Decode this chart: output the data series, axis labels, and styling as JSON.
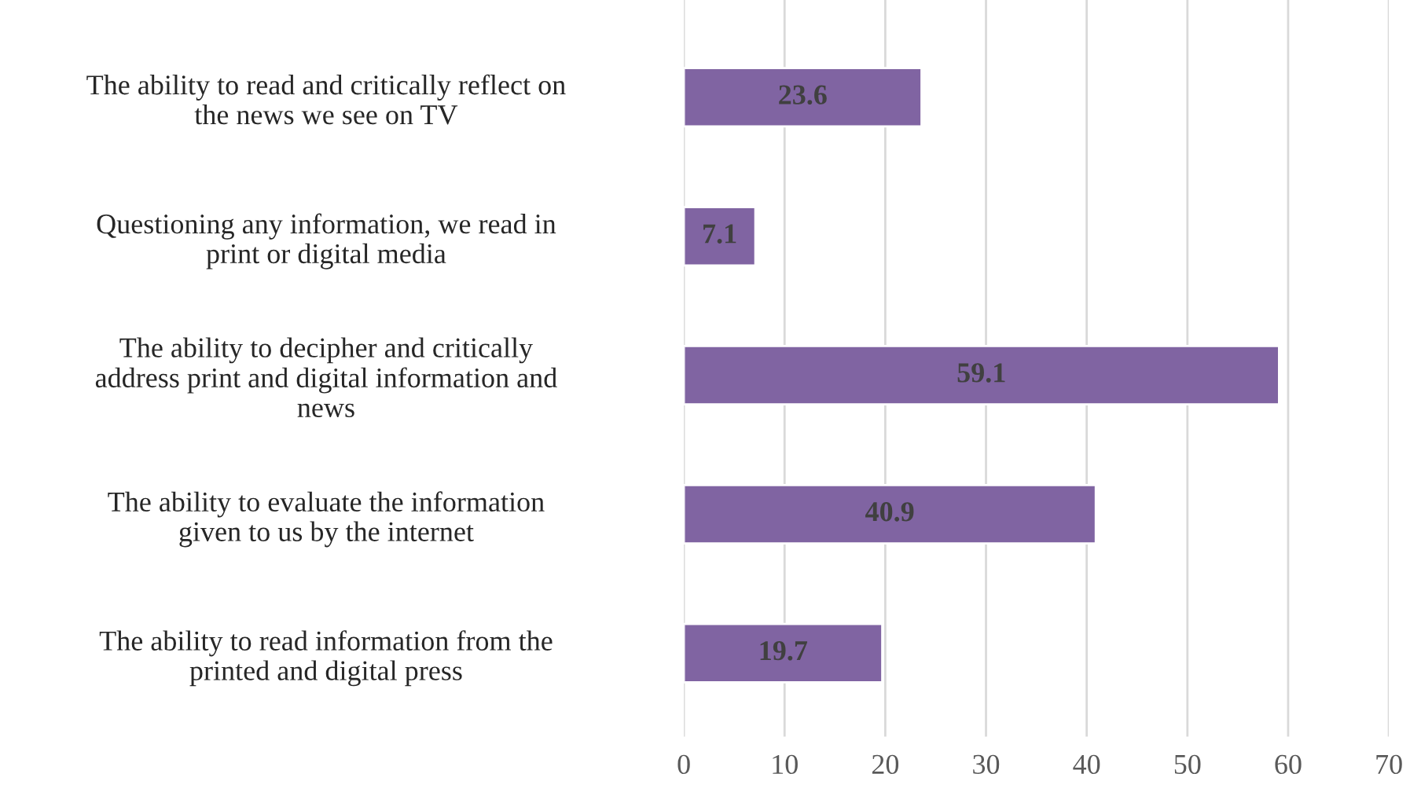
{
  "chart_data": {
    "type": "bar",
    "orientation": "horizontal",
    "categories": [
      "The ability to read and critically reflect on\nthe news we see on TV",
      "Questioning any information, we read in\nprint or digital media",
      "The ability to decipher and critically\naddress print and digital information and\nnews",
      "The ability to evaluate the information\ngiven to us by the internet",
      "The ability to read information from the\nprinted and digital press"
    ],
    "values": [
      23.6,
      7.1,
      59.1,
      40.9,
      19.7
    ],
    "color": "#8064a2",
    "xlim": [
      0,
      70
    ],
    "xticks": [
      0,
      10,
      20,
      30,
      40,
      50,
      60,
      70
    ],
    "grid": "x",
    "data_labels": true
  }
}
